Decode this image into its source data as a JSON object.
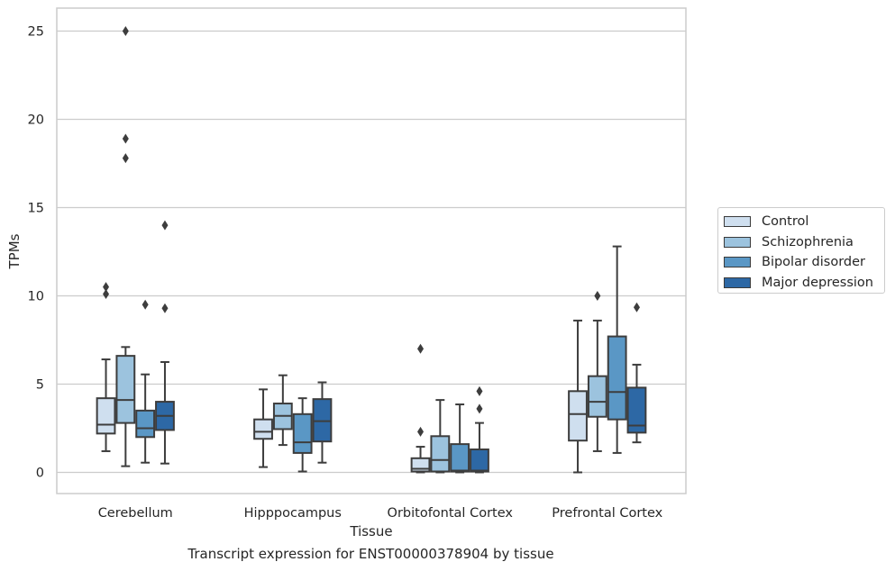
{
  "chart_data": {
    "type": "box",
    "ylabel": "TPMs",
    "xlabel": "Tissue",
    "caption": "Transcript expression for ENST00000378904 by tissue",
    "ylim": [
      -1.2,
      26.3
    ],
    "yticks": [
      0,
      5,
      10,
      15,
      20,
      25
    ],
    "grid": "horizontal",
    "legend_position": "right",
    "categories": [
      "Cerebellum",
      "Hipppocampus",
      "Orbitofontal Cortex",
      "Prefrontal Cortex"
    ],
    "series": [
      {
        "name": "Control",
        "color": "#cfdfef",
        "boxes": [
          {
            "whislo": 1.2,
            "q1": 2.2,
            "med": 2.7,
            "q3": 4.2,
            "whishi": 6.4,
            "fliers": [
              10.1,
              10.5
            ]
          },
          {
            "whislo": 0.3,
            "q1": 1.9,
            "med": 2.3,
            "q3": 3.0,
            "whishi": 4.7,
            "fliers": []
          },
          {
            "whislo": 0.0,
            "q1": 0.05,
            "med": 0.2,
            "q3": 0.8,
            "whishi": 1.45,
            "fliers": [
              2.3,
              7.0
            ]
          },
          {
            "whislo": 0.0,
            "q1": 1.8,
            "med": 3.3,
            "q3": 4.6,
            "whishi": 8.6,
            "fliers": []
          }
        ]
      },
      {
        "name": "Schizophrenia",
        "color": "#9cc3de",
        "boxes": [
          {
            "whislo": 0.35,
            "q1": 2.8,
            "med": 4.1,
            "q3": 6.6,
            "whishi": 7.1,
            "fliers": [
              17.8,
              18.9,
              25.0
            ]
          },
          {
            "whislo": 1.55,
            "q1": 2.45,
            "med": 3.2,
            "q3": 3.9,
            "whishi": 5.5,
            "fliers": []
          },
          {
            "whislo": 0.0,
            "q1": 0.05,
            "med": 0.7,
            "q3": 2.05,
            "whishi": 4.1,
            "fliers": []
          },
          {
            "whislo": 1.2,
            "q1": 3.15,
            "med": 4.0,
            "q3": 5.45,
            "whishi": 8.6,
            "fliers": [
              10.0
            ]
          }
        ]
      },
      {
        "name": "Bipolar disorder",
        "color": "#5a97c5",
        "boxes": [
          {
            "whislo": 0.55,
            "q1": 2.0,
            "med": 2.5,
            "q3": 3.5,
            "whishi": 5.55,
            "fliers": [
              9.5
            ]
          },
          {
            "whislo": 0.05,
            "q1": 1.1,
            "med": 1.7,
            "q3": 3.3,
            "whishi": 4.2,
            "fliers": []
          },
          {
            "whislo": 0.0,
            "q1": 0.05,
            "med": 0.1,
            "q3": 1.6,
            "whishi": 3.85,
            "fliers": []
          },
          {
            "whislo": 1.1,
            "q1": 3.0,
            "med": 4.55,
            "q3": 7.7,
            "whishi": 12.8,
            "fliers": []
          }
        ]
      },
      {
        "name": "Major depression",
        "color": "#2d68a5",
        "boxes": [
          {
            "whislo": 0.5,
            "q1": 2.4,
            "med": 3.2,
            "q3": 4.0,
            "whishi": 6.25,
            "fliers": [
              9.3,
              14.0
            ]
          },
          {
            "whislo": 0.55,
            "q1": 1.75,
            "med": 2.9,
            "q3": 4.15,
            "whishi": 5.1,
            "fliers": []
          },
          {
            "whislo": 0.0,
            "q1": 0.05,
            "med": 0.1,
            "q3": 1.3,
            "whishi": 2.8,
            "fliers": [
              3.6,
              4.6
            ]
          },
          {
            "whislo": 1.7,
            "q1": 2.25,
            "med": 2.65,
            "q3": 4.8,
            "whishi": 6.1,
            "fliers": [
              9.35
            ]
          }
        ]
      }
    ]
  }
}
